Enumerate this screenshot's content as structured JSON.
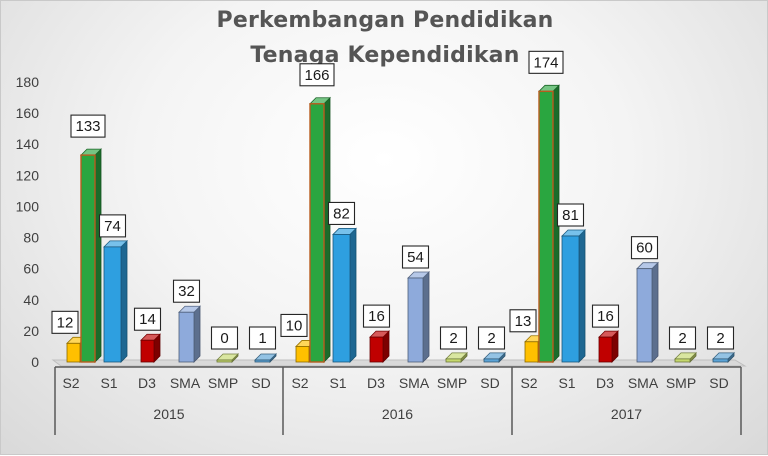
{
  "chart_data": {
    "type": "bar",
    "title_lines": [
      "Perkembangan Pendidikan",
      "Tenaga Kependidikan"
    ],
    "groups": [
      "2015",
      "2016",
      "2017"
    ],
    "categories": [
      "S2",
      "S1",
      "D3",
      "SMA",
      "SMP",
      "SD"
    ],
    "values": [
      [
        12,
        133,
        74,
        14,
        32,
        0,
        1
      ],
      [
        10,
        166,
        82,
        16,
        54,
        2,
        2
      ],
      [
        13,
        174,
        81,
        16,
        60,
        2,
        2
      ]
    ],
    "ylim": [
      0,
      180
    ],
    "yticks": [
      0,
      20,
      40,
      60,
      80,
      100,
      120,
      140,
      160,
      180
    ],
    "grid": false,
    "legend": "none",
    "colors": {
      "S2": "#ffc000",
      "unlabeled_green": "#2aa640",
      "S1": "#2e9fe0",
      "D3": "#c00000",
      "SMA": "#8eaadb",
      "SMP": "#c5d86d",
      "SD": "#5ba3d6"
    }
  }
}
